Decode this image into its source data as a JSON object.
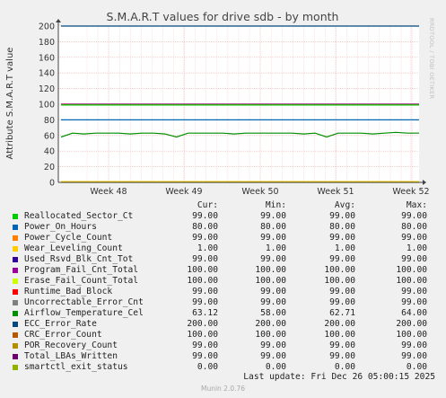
{
  "chart_data": {
    "type": "line",
    "title": "S.M.A.R.T values for drive sdb - by month",
    "ylabel": "Attribute S.M.A.R.T value",
    "xlabel": "",
    "ylim": [
      0,
      200
    ],
    "yticks": [
      "0",
      "20",
      "40",
      "60",
      "80",
      "100",
      "120",
      "140",
      "160",
      "180",
      "200"
    ],
    "xticks": [
      "Week 48",
      "Week 49",
      "Week 50",
      "Week 51",
      "Week 52"
    ],
    "grid": true,
    "series": [
      {
        "name": "Reallocated_Sector_Ct",
        "color": "#00cc00",
        "values": [
          99,
          99,
          99,
          99,
          99
        ]
      },
      {
        "name": "Power_On_Hours",
        "color": "#0066b3",
        "values": [
          80,
          80,
          80,
          80,
          80
        ]
      },
      {
        "name": "Power_Cycle_Count",
        "color": "#ff8000",
        "values": [
          99,
          99,
          99,
          99,
          99
        ]
      },
      {
        "name": "Wear_Leveling_Count",
        "color": "#ffcc00",
        "values": [
          1,
          1,
          1,
          1,
          1
        ]
      },
      {
        "name": "Used_Rsvd_Blk_Cnt_Tot",
        "color": "#330099",
        "values": [
          99,
          99,
          99,
          99,
          99
        ]
      },
      {
        "name": "Program_Fail_Cnt_Total",
        "color": "#990099",
        "values": [
          100,
          100,
          100,
          100,
          100
        ]
      },
      {
        "name": "Erase_Fail_Count_Total",
        "color": "#ccff00",
        "values": [
          100,
          100,
          100,
          100,
          100
        ]
      },
      {
        "name": "Runtime_Bad_Block",
        "color": "#ff0000",
        "values": [
          99,
          99,
          99,
          99,
          99
        ]
      },
      {
        "name": "Uncorrectable_Error_Cnt",
        "color": "#808080",
        "values": [
          99,
          99,
          99,
          99,
          99
        ]
      },
      {
        "name": "Airflow_Temperature_Cel",
        "color": "#008f00",
        "values": [
          58,
          63,
          62,
          63,
          63,
          63,
          62,
          63,
          63,
          62,
          58,
          63,
          63,
          63,
          63,
          62,
          63,
          63,
          63,
          63,
          63,
          62,
          63,
          58,
          63,
          63,
          63,
          62,
          63,
          64,
          63,
          63
        ]
      },
      {
        "name": "ECC_Error_Rate",
        "color": "#00487d",
        "values": [
          200,
          200,
          200,
          200,
          200
        ]
      },
      {
        "name": "CRC_Error_Count",
        "color": "#b35a00",
        "values": [
          100,
          100,
          100,
          100,
          100
        ]
      },
      {
        "name": "POR_Recovery_Count",
        "color": "#b38f00",
        "values": [
          99,
          99,
          99,
          99,
          99
        ]
      },
      {
        "name": "Total_LBAs_Written",
        "color": "#6b006b",
        "values": [
          99,
          99,
          99,
          99,
          99
        ]
      },
      {
        "name": "smartctl_exit_status",
        "color": "#8fb300",
        "values": [
          0,
          0,
          0,
          0,
          0
        ]
      }
    ]
  },
  "legend": {
    "headers": {
      "cur": "Cur:",
      "min": "Min:",
      "avg": "Avg:",
      "max": "Max:"
    },
    "rows": [
      {
        "name": "Reallocated_Sector_Ct",
        "cur": "99.00",
        "min": "99.00",
        "avg": "99.00",
        "max": "99.00"
      },
      {
        "name": "Power_On_Hours",
        "cur": "80.00",
        "min": "80.00",
        "avg": "80.00",
        "max": "80.00"
      },
      {
        "name": "Power_Cycle_Count",
        "cur": "99.00",
        "min": "99.00",
        "avg": "99.00",
        "max": "99.00"
      },
      {
        "name": "Wear_Leveling_Count",
        "cur": "1.00",
        "min": "1.00",
        "avg": "1.00",
        "max": "1.00"
      },
      {
        "name": "Used_Rsvd_Blk_Cnt_Tot",
        "cur": "99.00",
        "min": "99.00",
        "avg": "99.00",
        "max": "99.00"
      },
      {
        "name": "Program_Fail_Cnt_Total",
        "cur": "100.00",
        "min": "100.00",
        "avg": "100.00",
        "max": "100.00"
      },
      {
        "name": "Erase_Fail_Count_Total",
        "cur": "100.00",
        "min": "100.00",
        "avg": "100.00",
        "max": "100.00"
      },
      {
        "name": "Runtime_Bad_Block",
        "cur": "99.00",
        "min": "99.00",
        "avg": "99.00",
        "max": "99.00"
      },
      {
        "name": "Uncorrectable_Error_Cnt",
        "cur": "99.00",
        "min": "99.00",
        "avg": "99.00",
        "max": "99.00"
      },
      {
        "name": "Airflow_Temperature_Cel",
        "cur": "63.12",
        "min": "58.00",
        "avg": "62.71",
        "max": "64.00"
      },
      {
        "name": "ECC_Error_Rate",
        "cur": "200.00",
        "min": "200.00",
        "avg": "200.00",
        "max": "200.00"
      },
      {
        "name": "CRC_Error_Count",
        "cur": "100.00",
        "min": "100.00",
        "avg": "100.00",
        "max": "100.00"
      },
      {
        "name": "POR_Recovery_Count",
        "cur": "99.00",
        "min": "99.00",
        "avg": "99.00",
        "max": "99.00"
      },
      {
        "name": "Total_LBAs_Written",
        "cur": "99.00",
        "min": "99.00",
        "avg": "99.00",
        "max": "99.00"
      },
      {
        "name": "smartctl_exit_status",
        "cur": "0.00",
        "min": "0.00",
        "avg": "0.00",
        "max": "0.00"
      }
    ]
  },
  "last_update": "Last update: Fri Dec 26 05:00:15 2025",
  "footer": "Munin 2.0.76",
  "watermark": "RRDTOOL / TOBI OETIKER"
}
